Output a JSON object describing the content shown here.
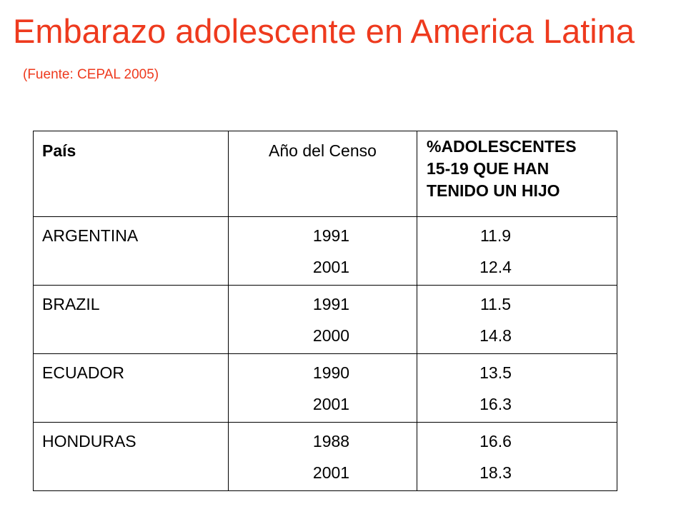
{
  "title": "Embarazo adolescente en America Latina",
  "source": "(Fuente: CEPAL 2005)",
  "table": {
    "headers": {
      "country": "País",
      "year": "Año del Censo",
      "pct_line1": "%ADOLESCENTES",
      "pct_line2": "15-19 QUE HAN",
      "pct_line3": "TENIDO UN HIJO"
    },
    "rows": [
      {
        "country": "ARGENTINA",
        "years": [
          "1991",
          "2001"
        ],
        "values": [
          "11.9",
          "12.4"
        ]
      },
      {
        "country": "BRAZIL",
        "years": [
          "1991",
          "2000"
        ],
        "values": [
          "11.5",
          "14.8"
        ]
      },
      {
        "country": "ECUADOR",
        "years": [
          "1990",
          "2001"
        ],
        "values": [
          "13.5",
          "16.3"
        ]
      },
      {
        "country": "HONDURAS",
        "years": [
          "1988",
          "2001"
        ],
        "values": [
          "16.6",
          "18.3"
        ]
      }
    ]
  },
  "colors": {
    "title": "#ee3a1e",
    "text": "#000000",
    "border": "#000000",
    "background": "#ffffff"
  }
}
